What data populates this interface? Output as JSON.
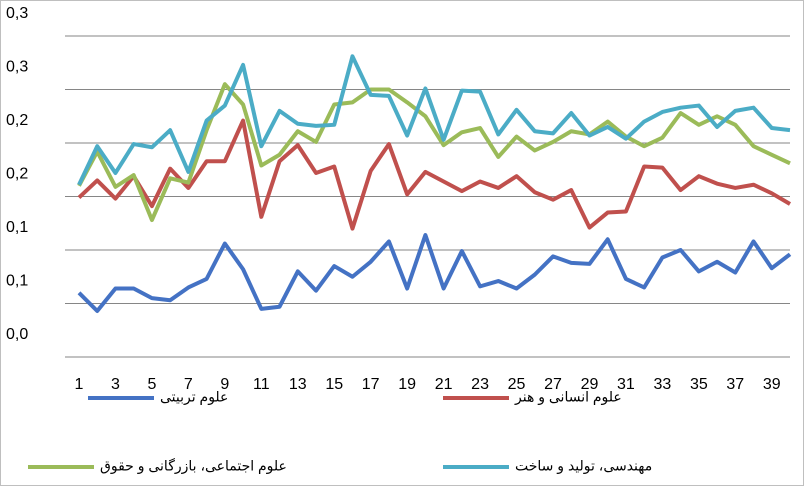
{
  "chart_data": {
    "type": "line",
    "x": [
      1,
      2,
      3,
      4,
      5,
      6,
      7,
      8,
      9,
      10,
      11,
      12,
      13,
      14,
      15,
      16,
      17,
      18,
      19,
      20,
      21,
      22,
      23,
      24,
      25,
      26,
      27,
      28,
      29,
      30,
      31,
      32,
      33,
      34,
      35,
      36,
      37,
      38,
      39,
      40
    ],
    "xlim": [
      1,
      40
    ],
    "xticks": [
      1,
      3,
      5,
      7,
      9,
      11,
      13,
      15,
      17,
      19,
      21,
      23,
      25,
      27,
      29,
      31,
      33,
      35,
      37,
      39
    ],
    "ylim": [
      0,
      0.3
    ],
    "yticks": [
      {
        "value": 0,
        "label": "0,0"
      },
      {
        "value": 0.05,
        "label": "0,1"
      },
      {
        "value": 0.1,
        "label": "0,1"
      },
      {
        "value": 0.15,
        "label": "0,2"
      },
      {
        "value": 0.2,
        "label": "0,2"
      },
      {
        "value": 0.25,
        "label": "0,3"
      },
      {
        "value": 0.3,
        "label": "0,3"
      }
    ],
    "grid": true,
    "series": [
      {
        "name": "علوم تربیتی",
        "color": "#4472c4",
        "values": [
          0.06,
          0.043,
          0.064,
          0.064,
          0.055,
          0.053,
          0.065,
          0.073,
          0.106,
          0.082,
          0.045,
          0.047,
          0.08,
          0.062,
          0.085,
          0.075,
          0.089,
          0.108,
          0.064,
          0.114,
          0.064,
          0.099,
          0.066,
          0.071,
          0.064,
          0.077,
          0.094,
          0.088,
          0.087,
          0.11,
          0.073,
          0.065,
          0.093,
          0.1,
          0.08,
          0.089,
          0.079,
          0.108,
          0.083,
          0.096
        ]
      },
      {
        "name": "علوم انسانی و هنر",
        "color": "#c0504d",
        "values": [
          0.149,
          0.165,
          0.148,
          0.169,
          0.141,
          0.176,
          0.158,
          0.183,
          0.183,
          0.221,
          0.131,
          0.183,
          0.198,
          0.172,
          0.178,
          0.12,
          0.174,
          0.199,
          0.152,
          0.173,
          0.164,
          0.155,
          0.164,
          0.158,
          0.169,
          0.154,
          0.147,
          0.156,
          0.121,
          0.135,
          0.136,
          0.178,
          0.177,
          0.156,
          0.169,
          0.162,
          0.158,
          0.161,
          0.153,
          0.143
        ]
      },
      {
        "name": "علوم اجتماعی، بازرگانی و حقوق",
        "color": "#9bbb59",
        "values": [
          0.16,
          0.192,
          0.159,
          0.17,
          0.128,
          0.167,
          0.163,
          0.212,
          0.255,
          0.236,
          0.179,
          0.189,
          0.211,
          0.201,
          0.236,
          0.238,
          0.25,
          0.25,
          0.238,
          0.225,
          0.198,
          0.21,
          0.214,
          0.187,
          0.206,
          0.193,
          0.201,
          0.211,
          0.208,
          0.22,
          0.206,
          0.197,
          0.205,
          0.228,
          0.217,
          0.225,
          0.217,
          0.197,
          0.189,
          0.181
        ]
      },
      {
        "name": "مهندسی، تولید و ساخت",
        "color": "#4bacc6",
        "values": [
          0.161,
          0.197,
          0.172,
          0.199,
          0.196,
          0.212,
          0.173,
          0.221,
          0.235,
          0.273,
          0.197,
          0.23,
          0.218,
          0.216,
          0.217,
          0.281,
          0.245,
          0.244,
          0.207,
          0.251,
          0.203,
          0.249,
          0.248,
          0.208,
          0.231,
          0.211,
          0.209,
          0.228,
          0.207,
          0.215,
          0.204,
          0.22,
          0.229,
          0.233,
          0.235,
          0.215,
          0.23,
          0.233,
          0.214,
          0.212
        ]
      }
    ]
  }
}
